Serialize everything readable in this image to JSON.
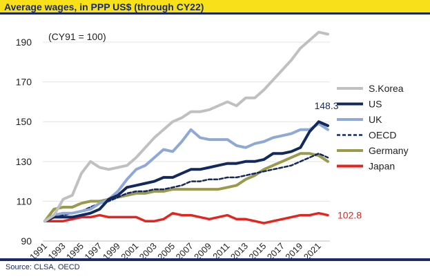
{
  "title": "Average wages, in PPP US$ (through CY22)",
  "source": "Source: CLSA, OECD",
  "chart_data": {
    "type": "line",
    "title": "Average wages, in PPP US$ (through CY22)",
    "note": "(CY91 = 100)",
    "x": [
      1991,
      1992,
      1993,
      1994,
      1995,
      1996,
      1997,
      1998,
      1999,
      2000,
      2001,
      2002,
      2003,
      2004,
      2005,
      2006,
      2007,
      2008,
      2009,
      2010,
      2011,
      2012,
      2013,
      2014,
      2015,
      2016,
      2017,
      2018,
      2019,
      2020,
      2021,
      2022
    ],
    "xtick_labels": [
      "1991",
      "1993",
      "1995",
      "1997",
      "1999",
      "2001",
      "2003",
      "2005",
      "2007",
      "2009",
      "2011",
      "2013",
      "2015",
      "2017",
      "2019",
      "2021"
    ],
    "xtick_values": [
      1991,
      1993,
      1995,
      1997,
      1999,
      2001,
      2003,
      2005,
      2007,
      2009,
      2011,
      2013,
      2015,
      2017,
      2019,
      2021
    ],
    "ylim": [
      90,
      198
    ],
    "yticks": [
      90,
      110,
      130,
      150,
      170,
      190
    ],
    "series": [
      {
        "name": "S.Korea",
        "color": "#c0c0c0",
        "dash": "none",
        "values": [
          100,
          103,
          111,
          113,
          124,
          130,
          127,
          126,
          127,
          128,
          132,
          137,
          142,
          146,
          150,
          152,
          155,
          155,
          156,
          158,
          160,
          158,
          162,
          162,
          166,
          171,
          176,
          181,
          187,
          191,
          195,
          194
        ]
      },
      {
        "name": "US",
        "color": "#13285e",
        "dash": "none",
        "values": [
          100,
          102,
          102,
          102,
          103,
          104,
          106,
          111,
          113,
          117,
          118,
          119,
          120,
          122,
          122,
          124,
          126,
          126,
          127,
          128,
          129,
          129,
          130,
          130,
          131,
          134,
          134,
          135,
          137,
          145,
          150,
          148
        ]
      },
      {
        "name": "UK",
        "color": "#8ea8d8",
        "dash": "none",
        "values": [
          100,
          103,
          104,
          104,
          105,
          106,
          109,
          111,
          115,
          121,
          126,
          128,
          132,
          136,
          135,
          140,
          146,
          142,
          141,
          141,
          141,
          138,
          137,
          139,
          140,
          142,
          143,
          144,
          146,
          146,
          149,
          146
        ]
      },
      {
        "name": "OECD",
        "color": "#13285e",
        "dash": "5,3",
        "values": [
          100,
          103,
          103,
          104,
          105,
          107,
          109,
          110,
          112,
          114,
          115,
          115,
          116,
          116,
          117,
          118,
          120,
          120,
          121,
          121,
          122,
          122,
          123,
          124,
          125,
          126,
          127,
          128,
          130,
          132,
          134,
          132
        ]
      },
      {
        "name": "Germany",
        "color": "#999a4a",
        "dash": "none",
        "values": [
          100,
          106,
          107,
          107,
          109,
          110,
          110,
          111,
          112,
          113,
          114,
          114,
          115,
          115,
          116,
          116,
          116,
          116,
          116,
          116,
          117,
          118,
          121,
          123,
          126,
          128,
          130,
          132,
          134,
          134,
          133,
          130
        ]
      },
      {
        "name": "Japan",
        "color": "#e8231d",
        "dash": "none",
        "values": [
          100,
          100,
          100,
          101,
          102,
          102,
          103,
          102,
          102,
          102,
          102,
          100,
          100,
          101,
          104,
          103,
          103,
          102,
          101,
          102,
          103,
          101,
          101,
          100,
          99,
          100,
          101,
          102,
          103,
          103,
          104,
          103
        ]
      }
    ],
    "annotations": [
      {
        "text": "148.3",
        "series": "US"
      },
      {
        "text": "102.8",
        "series": "Japan"
      }
    ],
    "legend_position": "right"
  }
}
